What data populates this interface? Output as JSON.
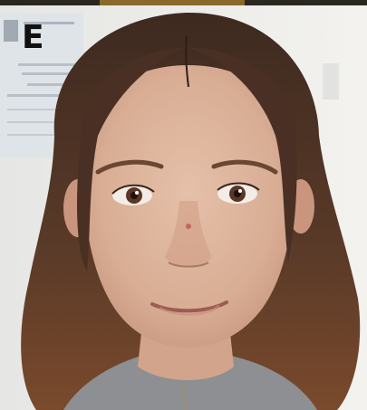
{
  "figure": {
    "panel_label": "E",
    "image_subject": "portrait-photo",
    "colors": {
      "background_wall": "#ecebe8",
      "skin": "#dcb29a",
      "hair": "#4a3024",
      "shirt": "#8d8f93"
    }
  }
}
